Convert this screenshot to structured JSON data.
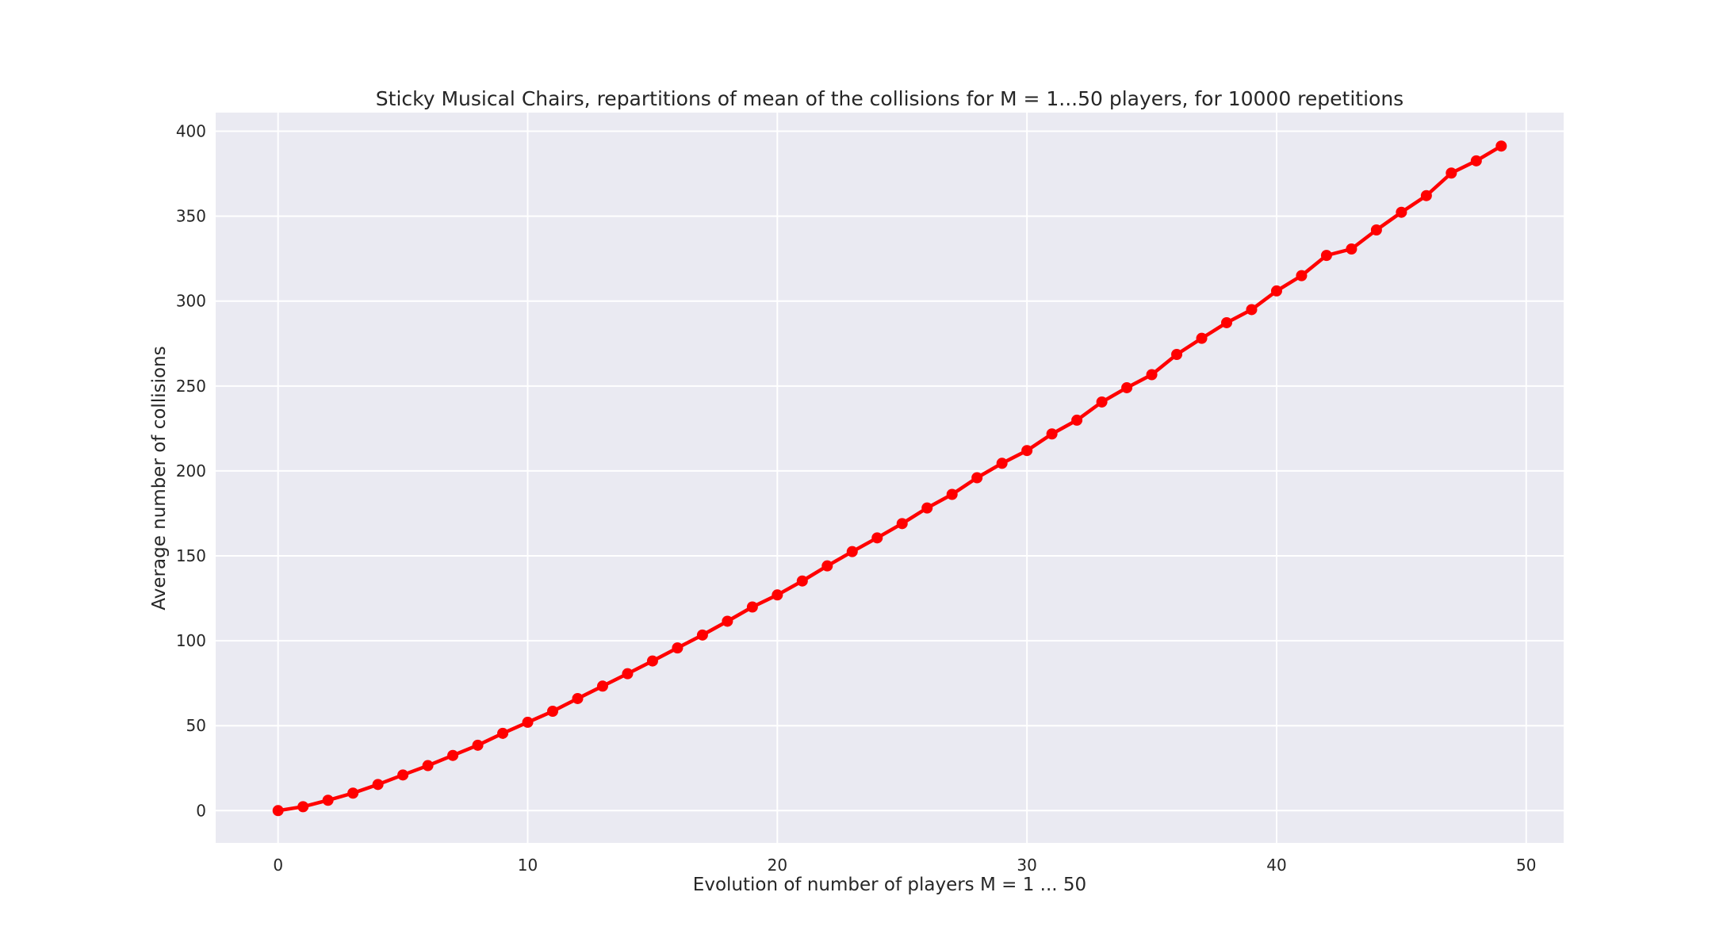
{
  "chart_data": {
    "type": "line",
    "title": "Sticky Musical Chairs, repartitions of mean of the collisions for M = 1...50 players, for 10000 repetitions",
    "xlabel": "Evolution of number of players M = 1 ... 50",
    "ylabel": "Average number of collisions",
    "xlim": [
      -2.5,
      51.5
    ],
    "ylim": [
      -19,
      411
    ],
    "xticks": [
      0,
      10,
      20,
      30,
      40,
      50
    ],
    "yticks": [
      0,
      50,
      100,
      150,
      200,
      250,
      300,
      350,
      400
    ],
    "xtick_labels": [
      "0",
      "10",
      "20",
      "30",
      "40",
      "50"
    ],
    "ytick_labels": [
      "0",
      "50",
      "100",
      "150",
      "200",
      "250",
      "300",
      "350",
      "400"
    ],
    "grid": true,
    "style": {
      "plot_background": "#EAEAF2",
      "grid_color": "#FFFFFF",
      "line_color": "#FF0000"
    },
    "x": [
      0,
      1,
      2,
      3,
      4,
      5,
      6,
      7,
      8,
      9,
      10,
      11,
      12,
      13,
      14,
      15,
      16,
      17,
      18,
      19,
      20,
      21,
      22,
      23,
      24,
      25,
      26,
      27,
      28,
      29,
      30,
      31,
      32,
      33,
      34,
      35,
      36,
      37,
      38,
      39,
      40,
      41,
      42,
      43,
      44,
      45,
      46,
      47,
      48,
      49
    ],
    "series": [
      {
        "color": "#FF0000",
        "marker": "circle",
        "values": [
          0,
          2.3,
          6.1,
          10.3,
          15.4,
          21.0,
          26.5,
          32.5,
          38.5,
          45.5,
          52.0,
          58.5,
          66.0,
          73.3,
          80.6,
          88.1,
          95.8,
          103.4,
          111.5,
          119.9,
          127.0,
          135.2,
          144.1,
          152.5,
          160.6,
          169.0,
          178.2,
          186.2,
          196.0,
          204.5,
          212.0,
          221.8,
          229.9,
          240.6,
          249.0,
          256.7,
          268.6,
          278.1,
          287.3,
          295.0,
          306.0,
          315.0,
          326.9,
          330.7,
          341.9,
          352.3,
          362.1,
          375.4,
          382.6,
          391.3
        ]
      }
    ]
  }
}
